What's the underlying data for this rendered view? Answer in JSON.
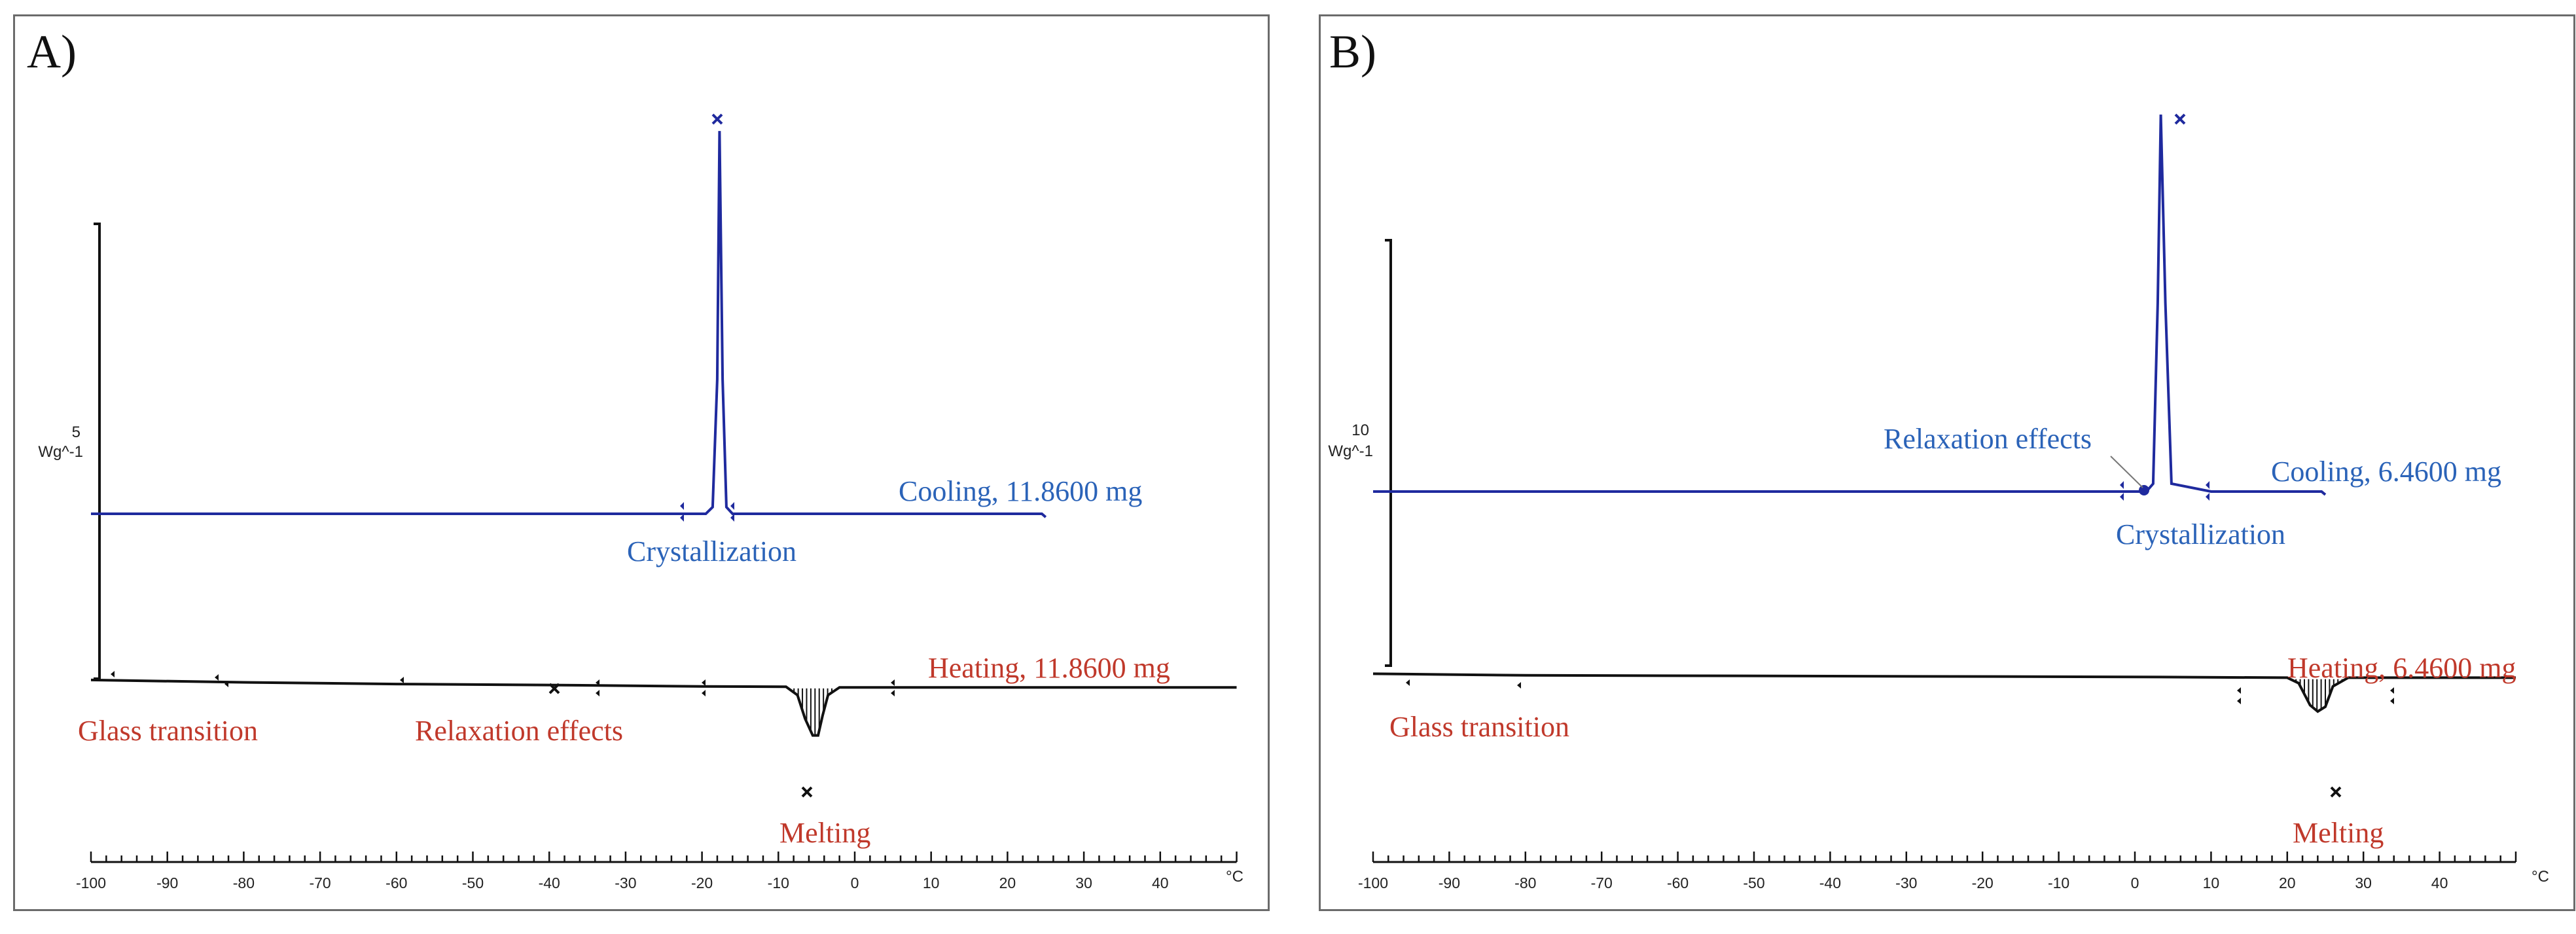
{
  "colors": {
    "cooling": "#1f2a9e",
    "cooling_text": "#2b63b8",
    "heating": "#111111",
    "heating_text": "#c0392b",
    "frame": "#6b6b6b"
  },
  "chart_data": [
    {
      "type": "line",
      "panel_letter": "A)",
      "xlim": [
        -100,
        50
      ],
      "x_ticks": [
        -100,
        -90,
        -80,
        -70,
        -60,
        -50,
        -40,
        -30,
        -20,
        -10,
        0,
        10,
        20,
        30,
        40
      ],
      "x_unit": "°C",
      "y_scale_value": "5",
      "y_unit": "Wg^-1",
      "series": [
        {
          "name": "Cooling, 11.8600 mg",
          "x": [
            -100,
            -60,
            -30,
            -22,
            -19.5,
            -18.6,
            -18.0,
            -17.7,
            -17.3,
            -16.8,
            -16,
            0,
            20,
            24.5,
            25
          ],
          "y": [
            0,
            0,
            0,
            0,
            0,
            0.2,
            4,
            11.4,
            4,
            0.2,
            0,
            0,
            0,
            0,
            -0.1
          ]
        },
        {
          "name": "Heating, 11.8600 mg",
          "x": [
            -100,
            -80,
            -60,
            -40,
            -20,
            -9,
            -7.5,
            -6.5,
            -5.5,
            -4.8,
            -4.2,
            -3.5,
            -2,
            6.5,
            20,
            50
          ],
          "y": [
            -4.95,
            -5.02,
            -5.07,
            -5.1,
            -5.14,
            -5.15,
            -5.4,
            -6.1,
            -6.6,
            -6.6,
            -6.0,
            -5.4,
            -5.17,
            -5.17,
            -5.17,
            -5.17
          ]
        }
      ],
      "cooling_label": "Cooling, 11.8600 mg",
      "heating_label": "Heating, 11.8600 mg",
      "annotations": [
        {
          "text": "Crystallization",
          "series": "cooling"
        },
        {
          "text": "Glass transition",
          "series": "heating"
        },
        {
          "text": "Relaxation effects",
          "series": "heating"
        },
        {
          "text": "Melting",
          "series": "heating"
        }
      ]
    },
    {
      "type": "line",
      "panel_letter": "B)",
      "xlim": [
        -100,
        50
      ],
      "x_ticks": [
        -100,
        -90,
        -80,
        -70,
        -60,
        -50,
        -40,
        -30,
        -20,
        -10,
        0,
        10,
        20,
        30,
        40
      ],
      "x_unit": "°C",
      "y_scale_value": "10",
      "y_unit": "Wg^-1",
      "series": [
        {
          "name": "Cooling, 6.4600 mg",
          "x": [
            -100,
            -40,
            -10,
            0,
            1.5,
            2.4,
            3.0,
            3.4,
            4.0,
            4.8,
            10,
            20,
            24.5,
            25
          ],
          "y": [
            0,
            0,
            0,
            0,
            0,
            0.5,
            12,
            24,
            12,
            0.5,
            0,
            0,
            0,
            -0.2
          ]
        },
        {
          "name": "Heating, 6.4600 mg",
          "x": [
            -100,
            -90,
            -80,
            -40,
            0,
            20,
            21.5,
            23,
            24,
            25,
            26,
            28,
            35,
            50
          ],
          "y": [
            -11.6,
            -11.65,
            -11.7,
            -11.75,
            -11.8,
            -11.85,
            -12.2,
            -13.6,
            -14.0,
            -13.7,
            -12.4,
            -11.85,
            -11.85,
            -11.85
          ]
        }
      ],
      "cooling_label": "Cooling, 6.4600 mg",
      "heating_label": "Heating, 6.4600 mg",
      "annotations": [
        {
          "text": "Relaxation effects",
          "series": "cooling"
        },
        {
          "text": "Crystallization",
          "series": "cooling"
        },
        {
          "text": "Glass transition",
          "series": "heating"
        },
        {
          "text": "Melting",
          "series": "heating"
        }
      ]
    }
  ]
}
